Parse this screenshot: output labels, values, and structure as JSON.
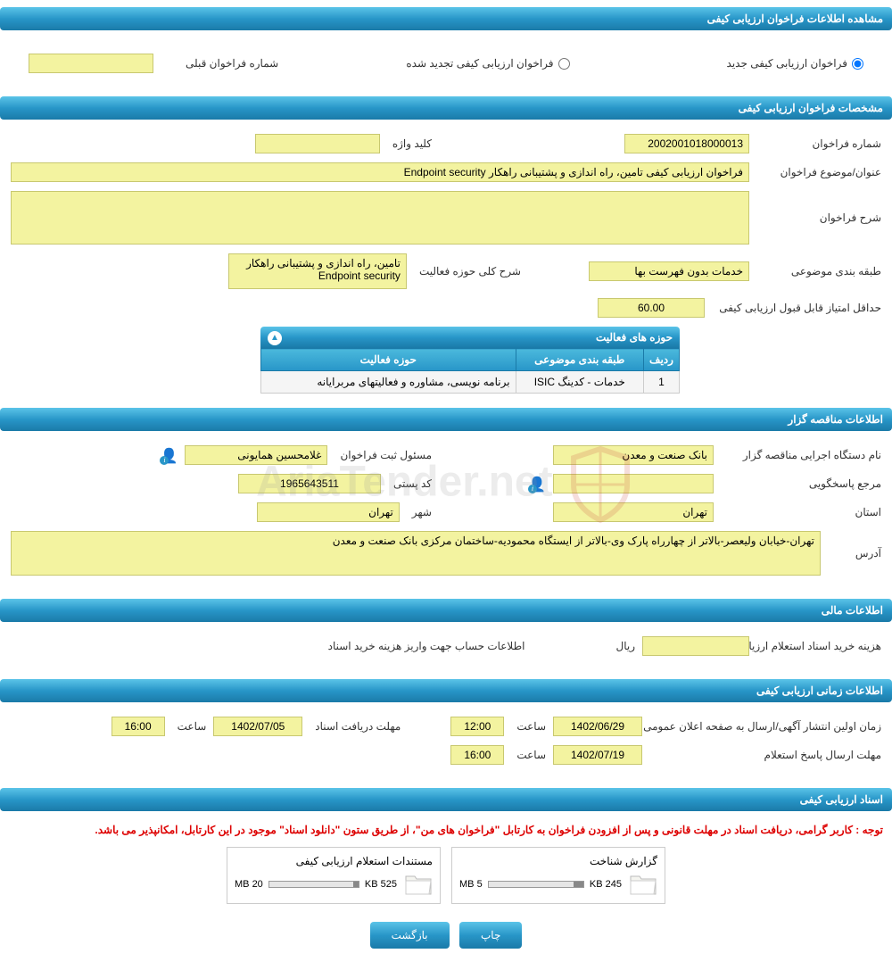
{
  "headers": {
    "view_info": "مشاهده اطلاعات فراخوان ارزیابی کیفی",
    "specs": "مشخصات فراخوان ارزیابی کیفی",
    "activities": "حوزه های فعالیت",
    "tenderer_info": "اطلاعات مناقصه گزار",
    "financial": "اطلاعات مالی",
    "timing": "اطلاعات زمانی ارزیابی کیفی",
    "documents": "اسناد ارزیابی کیفی"
  },
  "radios": {
    "new_call": "فراخوان ارزیابی کیفی جدید",
    "renewed_call": "فراخوان ارزیابی کیفی تجدید شده",
    "prev_call_num": "شماره فراخوان قبلی"
  },
  "specs": {
    "call_number_label": "شماره فراخوان",
    "call_number": "2002001018000013",
    "keyword_label": "کلید واژه",
    "keyword": "",
    "title_label": "عنوان/موضوع فراخوان",
    "title": "فراخوان ارزیابی کیفی تامین، راه اندازی و پشتیبانی راهکار Endpoint security",
    "desc_label": "شرح فراخوان",
    "desc": "",
    "subject_class_label": "طبقه بندی موضوعی",
    "subject_class": "خدمات بدون فهرست بها",
    "activity_scope_label": "شرح کلی حوزه فعالیت",
    "activity_scope": "تامین، راه اندازی و پشتیبانی راهکار Endpoint security",
    "min_score_label": "حداقل امتیاز قابل قبول ارزیابی کیفی",
    "min_score": "60.00"
  },
  "activity_table": {
    "col_row": "ردیف",
    "col_subject": "طبقه بندی موضوعی",
    "col_activity": "حوزه فعالیت",
    "rows": [
      {
        "n": "1",
        "subject": "خدمات - کدینگ ISIC",
        "activity": "برنامه نویسی، مشاوره و فعالیتهای مربرایانه"
      }
    ]
  },
  "tenderer": {
    "org_label": "نام دستگاه اجرایی مناقصه گزار",
    "org": "بانک صنعت و معدن",
    "reg_resp_label": "مسئول ثبت فراخوان",
    "reg_resp": "غلامحسین  همایونی",
    "contact_label": "مرجع پاسخگویی",
    "contact": "",
    "postal_label": "کد پستی",
    "postal": "1965643511",
    "province_label": "استان",
    "province": "تهران",
    "city_label": "شهر",
    "city": "تهران",
    "address_label": "آدرس",
    "address": "تهران-خیابان ولیعصر-بالاتر از چهارراه پارک وی-بالاتر از ایستگاه محمودیه-ساختمان مرکزی بانک صنعت و معدن"
  },
  "financial": {
    "purchase_cost_label": "هزینه خرید اسناد استعلام ارزیابی کیفی",
    "purchase_cost": "",
    "rial": "ریال",
    "account_info_label": "اطلاعات حساب جهت واریز هزینه خرید اسناد"
  },
  "timing": {
    "first_publish_label": "زمان اولین انتشار آگهی/ارسال به صفحه اعلان عمومی",
    "first_publish_date": "1402/06/29",
    "first_publish_time": "12:00",
    "doc_deadline_label": "مهلت دریافت اسناد",
    "doc_deadline_date": "1402/07/05",
    "doc_deadline_time": "16:00",
    "response_deadline_label": "مهلت ارسال پاسخ استعلام",
    "response_deadline_date": "1402/07/19",
    "response_deadline_time": "16:00",
    "time_label": "ساعت"
  },
  "documents": {
    "note": "توجه : کاربر گرامی، دریافت اسناد در مهلت قانونی و پس از افزودن فراخوان به کارتابل \"فراخوان های من\"، از طریق ستون \"دانلود اسناد\" موجود در این کارتابل، امکانپذیر می باشد.",
    "files": [
      {
        "title": "گزارش شناخت",
        "size": "245 KB",
        "limit": "5 MB",
        "pct": 10
      },
      {
        "title": "مستندات استعلام ارزیابی کیفی",
        "size": "525 KB",
        "limit": "20 MB",
        "pct": 6
      }
    ]
  },
  "buttons": {
    "print": "چاپ",
    "back": "بازگشت"
  },
  "watermark": "AriaTender.net"
}
